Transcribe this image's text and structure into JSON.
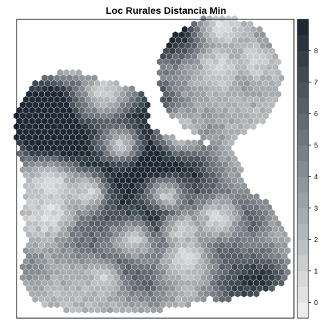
{
  "chart_data": {
    "type": "heatmap",
    "title": "Loc Rurales Distancia Min",
    "legend": {
      "position": "right",
      "ticks": [
        0,
        1,
        2,
        3,
        4,
        5,
        6,
        7,
        8
      ],
      "min": -0.5,
      "max": 9.0,
      "bins": 19,
      "colors_low_to_high": [
        "#ecedec",
        "#1e2934"
      ]
    },
    "grid": false,
    "cells": "hexagonal bins, estimated",
    "hotspots": [
      {
        "x": 0.03,
        "y": 0.23,
        "value": 8.2,
        "r": 0.1
      },
      {
        "x": 0.14,
        "y": 0.18,
        "value": 6.5,
        "r": 0.09
      },
      {
        "x": 0.1,
        "y": 0.35,
        "value": 6.8,
        "r": 0.08
      },
      {
        "x": 0.28,
        "y": 0.06,
        "value": 6.0,
        "r": 0.07
      },
      {
        "x": 0.2,
        "y": 0.34,
        "value": 6.5,
        "r": 0.07
      },
      {
        "x": 0.43,
        "y": 0.27,
        "value": 7.5,
        "r": 0.12
      },
      {
        "x": 0.33,
        "y": 0.44,
        "value": 6.5,
        "r": 0.08
      },
      {
        "x": 0.48,
        "y": 0.41,
        "value": 7.2,
        "r": 0.1
      },
      {
        "x": 0.62,
        "y": 0.43,
        "value": 6.5,
        "r": 0.07
      },
      {
        "x": 0.37,
        "y": 0.61,
        "value": 6.5,
        "r": 0.08
      },
      {
        "x": 0.36,
        "y": 0.84,
        "value": 7.0,
        "r": 0.07
      },
      {
        "x": 0.22,
        "y": 0.7,
        "value": 5.5,
        "r": 0.07
      },
      {
        "x": 0.55,
        "y": 0.65,
        "value": 6.0,
        "r": 0.08
      },
      {
        "x": 0.47,
        "y": 0.72,
        "value": 5.5,
        "r": 0.07
      },
      {
        "x": 0.74,
        "y": 0.75,
        "value": 6.0,
        "r": 0.07
      },
      {
        "x": 0.85,
        "y": 0.63,
        "value": 6.5,
        "r": 0.06
      },
      {
        "x": 0.9,
        "y": 0.87,
        "value": 7.8,
        "r": 0.08
      },
      {
        "x": 0.77,
        "y": 0.92,
        "value": 5.5,
        "r": 0.06
      },
      {
        "x": 0.05,
        "y": 0.82,
        "value": 4.5,
        "r": 0.05
      },
      {
        "x": 0.5,
        "y": 0.9,
        "value": 5.0,
        "r": 0.06
      },
      {
        "x": 0.52,
        "y": 0.17,
        "value": 5.0,
        "r": 0.06
      },
      {
        "x": 0.55,
        "y": 0.6,
        "value": 5.5,
        "r": 0.06
      },
      {
        "x": 0.66,
        "y": 0.29,
        "value": 5.0,
        "r": 0.06
      },
      {
        "x": 0.72,
        "y": 0.53,
        "value": 5.5,
        "r": 0.07
      },
      {
        "x": 0.5,
        "y": -0.08,
        "value": 7.5,
        "r": 0.06
      },
      {
        "x": 0.52,
        "y": -0.11,
        "value": 5.5,
        "r": 0.08
      },
      {
        "x": 0.63,
        "y": -0.14,
        "value": 5.0,
        "r": 0.06
      },
      {
        "x": 0.62,
        "y": -0.03,
        "value": 5.0,
        "r": 0.07
      },
      {
        "x": 0.83,
        "y": 0.05,
        "value": 5.0,
        "r": 0.07
      },
      {
        "x": 0.93,
        "y": -0.05,
        "value": 4.8,
        "r": 0.05
      }
    ],
    "coldspots": [
      {
        "x": 0.22,
        "y": 0.02,
        "value": 0.3,
        "r": 0.06
      },
      {
        "x": 0.32,
        "y": 0.14,
        "value": 0.3,
        "r": 0.07
      },
      {
        "x": 0.38,
        "y": 0.35,
        "value": 0.3,
        "r": 0.06
      },
      {
        "x": 0.12,
        "y": 0.49,
        "value": 0.5,
        "r": 0.06
      },
      {
        "x": 0.12,
        "y": 0.63,
        "value": 0.5,
        "r": 0.06
      },
      {
        "x": 0.26,
        "y": 0.53,
        "value": 0.5,
        "r": 0.05
      },
      {
        "x": 0.43,
        "y": 0.72,
        "value": 0.5,
        "r": 0.06
      },
      {
        "x": 0.6,
        "y": 0.68,
        "value": 0.5,
        "r": 0.06
      },
      {
        "x": 0.6,
        "y": 0.3,
        "value": 0.3,
        "r": 0.07
      },
      {
        "x": 0.74,
        "y": 0.64,
        "value": 0.5,
        "r": 0.06
      },
      {
        "x": 0.62,
        "y": 0.79,
        "value": 0.5,
        "r": 0.06
      },
      {
        "x": 0.75,
        "y": 0.05,
        "value": 0.2,
        "r": 0.06
      },
      {
        "x": 0.75,
        "y": -0.1,
        "value": 0.3,
        "r": 0.05
      },
      {
        "x": 0.88,
        "y": 0.02,
        "value": 0.2,
        "r": 0.06
      },
      {
        "x": 0.32,
        "y": 0.87,
        "value": 0.8,
        "r": 0.05
      },
      {
        "x": 0.55,
        "y": 0.55,
        "value": 0.8,
        "r": 0.05
      }
    ]
  }
}
